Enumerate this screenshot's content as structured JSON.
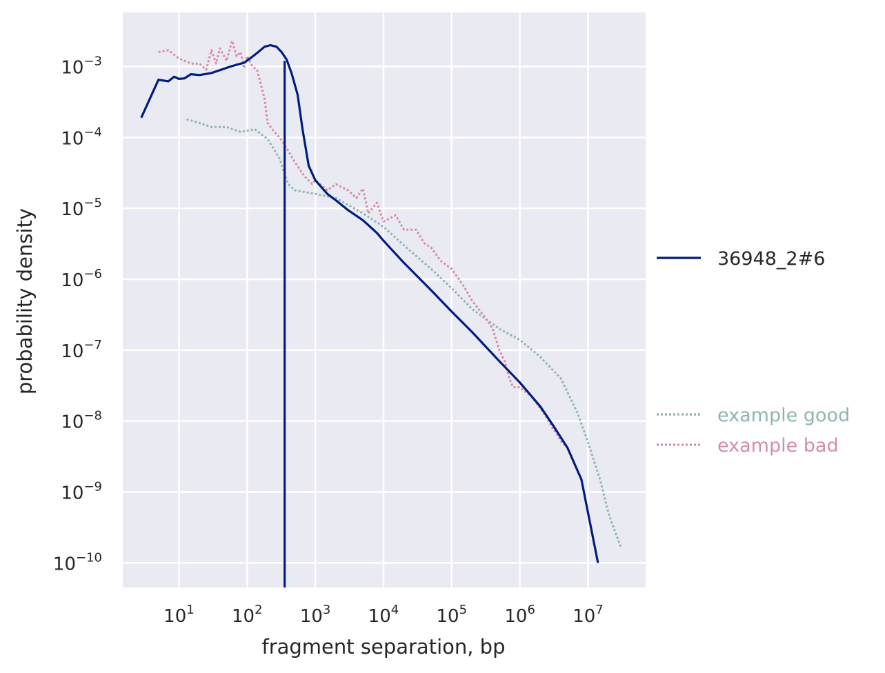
{
  "chart_data": {
    "type": "line",
    "xlabel": "fragment separation, bp",
    "ylabel": "probability density",
    "xscale": "log",
    "yscale": "log",
    "xlim": [
      1.5,
      70000000
    ],
    "ylim": [
      4.5e-11,
      0.0058
    ],
    "grid": true,
    "background": "#EAEAF2",
    "x_ticks": [
      {
        "base": "10",
        "exp": "1",
        "value": 10
      },
      {
        "base": "10",
        "exp": "2",
        "value": 100
      },
      {
        "base": "10",
        "exp": "3",
        "value": 1000
      },
      {
        "base": "10",
        "exp": "4",
        "value": 10000
      },
      {
        "base": "10",
        "exp": "5",
        "value": 100000
      },
      {
        "base": "10",
        "exp": "6",
        "value": 1000000
      },
      {
        "base": "10",
        "exp": "7",
        "value": 10000000
      }
    ],
    "y_ticks": [
      {
        "base": "10",
        "exp": "−3",
        "value": 0.001
      },
      {
        "base": "10",
        "exp": "−4",
        "value": 0.0001
      },
      {
        "base": "10",
        "exp": "−5",
        "value": 1e-05
      },
      {
        "base": "10",
        "exp": "−6",
        "value": 1e-06
      },
      {
        "base": "10",
        "exp": "−7",
        "value": 1e-07
      },
      {
        "base": "10",
        "exp": "−8",
        "value": 1e-08
      },
      {
        "base": "10",
        "exp": "−9",
        "value": 1e-09
      },
      {
        "base": "10",
        "exp": "−10",
        "value": 1e-10
      }
    ],
    "vline": {
      "x": 355,
      "color": "#001C7F"
    },
    "legend": {
      "placement": "right",
      "main": [
        {
          "label": "36948_2#6",
          "color": "#001C7F",
          "style": "solid"
        }
      ],
      "reference": [
        {
          "label": "example good",
          "color": "#8FB5B1",
          "style": "dotted"
        },
        {
          "label": "example bad",
          "color": "#D68CA8",
          "style": "dotted"
        }
      ]
    },
    "series": [
      {
        "name": "36948_2#6",
        "color": "#001C7F",
        "style": "solid",
        "points": [
          [
            2.8,
            0.00019
          ],
          [
            5,
            0.00065
          ],
          [
            7,
            0.00062
          ],
          [
            8.5,
            0.00072
          ],
          [
            10,
            0.00067
          ],
          [
            12,
            0.00068
          ],
          [
            15,
            0.00078
          ],
          [
            20,
            0.00076
          ],
          [
            30,
            0.00081
          ],
          [
            40,
            0.00089
          ],
          [
            55,
            0.00099
          ],
          [
            70,
            0.00106
          ],
          [
            90,
            0.00113
          ],
          [
            110,
            0.0013
          ],
          [
            140,
            0.00155
          ],
          [
            180,
            0.0019
          ],
          [
            220,
            0.002
          ],
          [
            270,
            0.0019
          ],
          [
            320,
            0.0016
          ],
          [
            380,
            0.00125
          ],
          [
            450,
            0.0008
          ],
          [
            550,
            0.0004
          ],
          [
            650,
            0.00013
          ],
          [
            800,
            4e-05
          ],
          [
            1000,
            2.5e-05
          ],
          [
            1500,
            1.6e-05
          ],
          [
            2000,
            1.3e-05
          ],
          [
            3000,
            9.5e-06
          ],
          [
            5000,
            6.8e-06
          ],
          [
            8000,
            4.5e-06
          ],
          [
            10000,
            3.5e-06
          ],
          [
            20000,
            1.7e-06
          ],
          [
            50000,
            7e-07
          ],
          [
            100000,
            3.5e-07
          ],
          [
            200000,
            1.8e-07
          ],
          [
            500000,
            7e-08
          ],
          [
            1000000,
            3.5e-08
          ],
          [
            2000000,
            1.6e-08
          ],
          [
            3000000,
            9e-09
          ],
          [
            5000000,
            4.2e-09
          ],
          [
            8000000,
            1.5e-09
          ],
          [
            14000000,
            1e-10
          ]
        ]
      },
      {
        "name": "example good",
        "color": "#8FB5B1",
        "style": "dotted",
        "points": [
          [
            13,
            0.00018
          ],
          [
            20,
            0.00016
          ],
          [
            30,
            0.00014
          ],
          [
            50,
            0.00014
          ],
          [
            80,
            0.00012
          ],
          [
            130,
            0.00013
          ],
          [
            200,
            9.5e-05
          ],
          [
            300,
            5e-05
          ],
          [
            400,
            2.2e-05
          ],
          [
            500,
            1.8e-05
          ],
          [
            700,
            1.7e-05
          ],
          [
            1000,
            1.6e-05
          ],
          [
            2000,
            1.4e-05
          ],
          [
            5000,
            8.5e-06
          ],
          [
            10000,
            5.5e-06
          ],
          [
            20000,
            3e-06
          ],
          [
            50000,
            1.4e-06
          ],
          [
            100000,
            7.5e-07
          ],
          [
            200000,
            3.8e-07
          ],
          [
            500000,
            2e-07
          ],
          [
            1000000,
            1.4e-07
          ],
          [
            2000000,
            8e-08
          ],
          [
            4000000,
            4e-08
          ],
          [
            7000000,
            1.3e-08
          ],
          [
            10000000,
            5e-09
          ],
          [
            15000000,
            1.5e-09
          ],
          [
            20000000,
            5e-10
          ],
          [
            30000000,
            1.7e-10
          ]
        ]
      },
      {
        "name": "example bad",
        "color": "#D68CA8",
        "style": "dotted",
        "points": [
          [
            5,
            0.0016
          ],
          [
            7,
            0.0017
          ],
          [
            10,
            0.0013
          ],
          [
            15,
            0.0011
          ],
          [
            20,
            0.0011
          ],
          [
            25,
            0.0009
          ],
          [
            30,
            0.0017
          ],
          [
            35,
            0.0011
          ],
          [
            40,
            0.0018
          ],
          [
            50,
            0.0012
          ],
          [
            60,
            0.0023
          ],
          [
            70,
            0.0014
          ],
          [
            80,
            0.0016
          ],
          [
            90,
            0.00095
          ],
          [
            100,
            0.0014
          ],
          [
            120,
            0.001
          ],
          [
            140,
            0.0009
          ],
          [
            160,
            0.00055
          ],
          [
            180,
            0.00035
          ],
          [
            200,
            0.00016
          ],
          [
            250,
            0.00012
          ],
          [
            300,
            0.0001
          ],
          [
            400,
            6.5e-05
          ],
          [
            500,
            4.5e-05
          ],
          [
            700,
            2.8e-05
          ],
          [
            900,
            2.2e-05
          ],
          [
            1000,
            2.5e-05
          ],
          [
            1500,
            1.8e-05
          ],
          [
            2000,
            2.2e-05
          ],
          [
            3000,
            1.8e-05
          ],
          [
            4000,
            1.4e-05
          ],
          [
            5000,
            1.9e-05
          ],
          [
            6000,
            8.5e-06
          ],
          [
            8000,
            1.2e-05
          ],
          [
            10000,
            6.5e-06
          ],
          [
            15000,
            8e-06
          ],
          [
            20000,
            5e-06
          ],
          [
            30000,
            5e-06
          ],
          [
            40000,
            3.2e-06
          ],
          [
            50000,
            2.8e-06
          ],
          [
            70000,
            1.8e-06
          ],
          [
            100000,
            1.4e-06
          ],
          [
            150000,
            8e-07
          ],
          [
            200000,
            5e-07
          ],
          [
            300000,
            3e-07
          ],
          [
            400000,
            2e-07
          ],
          [
            500000,
            1e-07
          ],
          [
            600000,
            7e-08
          ],
          [
            700000,
            4e-08
          ],
          [
            800000,
            3e-08
          ],
          [
            1000000,
            3e-08
          ],
          [
            1500000,
            2.2e-08
          ],
          [
            2000000,
            1.5e-08
          ],
          [
            2500000,
            1.1e-08
          ],
          [
            3000000,
            8e-09
          ],
          [
            3500000,
            6.5e-09
          ],
          [
            4000000,
            5.2e-09
          ],
          [
            5000000,
            4.2e-09
          ]
        ]
      }
    ]
  }
}
